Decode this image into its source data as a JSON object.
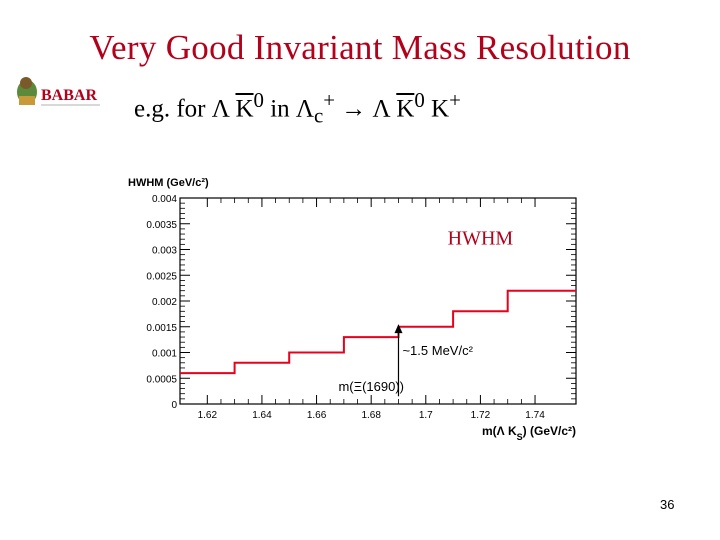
{
  "slide": {
    "title": "Very Good Invariant Mass Resolution",
    "subtitle": {
      "prefix": "e.g. for Λ ",
      "k1": "K",
      "k1_sup": "0",
      "in": " in Λ",
      "lc_sub": "c",
      "lc_sup": "+",
      "arrow": " → Λ ",
      "k2": "K",
      "k2_sup": "0",
      "kplus": " K",
      "kplus_sup": "+"
    },
    "logo_text": "BABAR",
    "slide_number": "36"
  },
  "chart_data": {
    "type": "line",
    "step": true,
    "ylabel": "HWHM (GeV/c²)",
    "xlabel": "m(Λ K_S) (GeV/c²)",
    "xlim": [
      1.61,
      1.755
    ],
    "ylim": [
      0,
      0.004
    ],
    "xticks": [
      "1.62",
      "1.64",
      "1.66",
      "1.68",
      "1.7",
      "1.72",
      "1.74"
    ],
    "yticks": [
      "0",
      "0.0005",
      "0.001",
      "0.0015",
      "0.002",
      "0.0025",
      "0.003",
      "0.0035",
      "0.004"
    ],
    "series": [
      {
        "color": "#e8001c",
        "x": [
          1.61,
          1.63,
          1.63,
          1.65,
          1.65,
          1.67,
          1.67,
          1.69,
          1.69,
          1.71,
          1.71,
          1.73,
          1.73,
          1.755
        ],
        "y": [
          0.0006,
          0.0006,
          0.0008,
          0.0008,
          0.001,
          0.001,
          0.0013,
          0.0013,
          0.0015,
          0.0015,
          0.0018,
          0.0018,
          0.0022,
          0.0022
        ]
      }
    ],
    "annotations": {
      "hwhm_label": "HWHM",
      "resolution_label": "~1.5 MeV/c²",
      "xi_label": "m(Ξ(1690))",
      "xi_x": 1.69
    },
    "colors": {
      "title": "#b3001b",
      "line": "#e8001c",
      "annotation": "#b3001b"
    }
  }
}
